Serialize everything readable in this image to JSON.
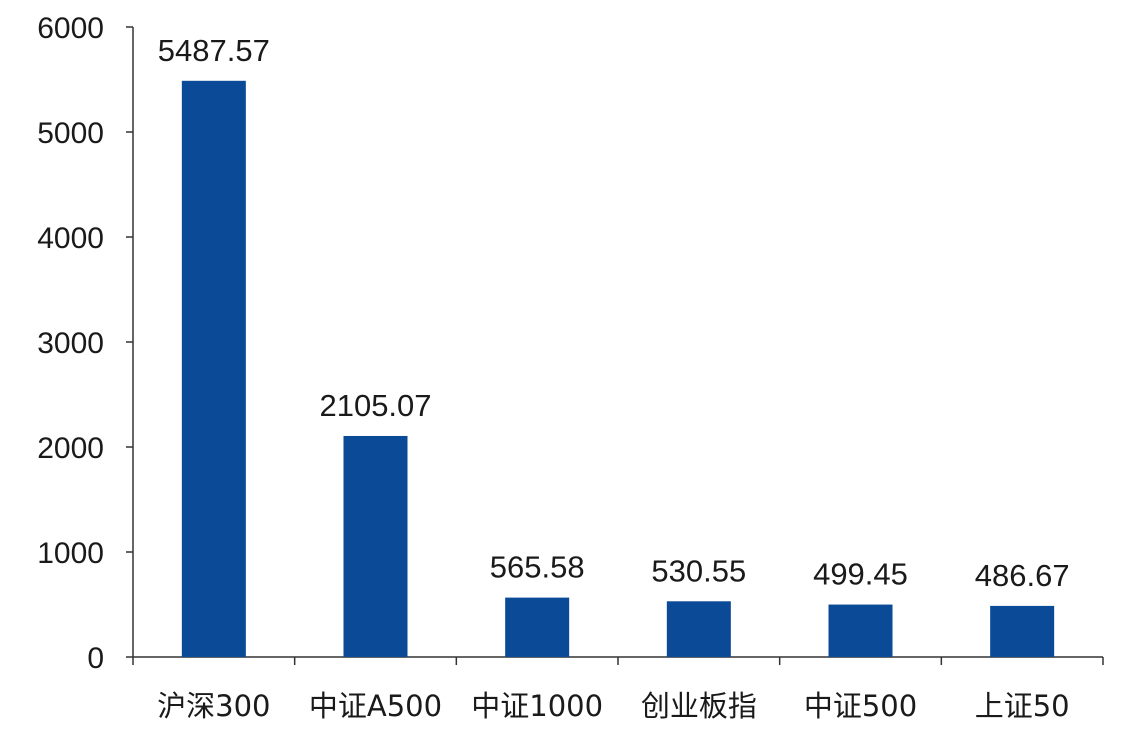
{
  "chart_data": {
    "type": "bar",
    "categories": [
      "沪深300",
      "中证A500",
      "中证1000",
      "创业板指",
      "中证500",
      "上证50"
    ],
    "values": [
      5487.57,
      2105.07,
      565.58,
      530.55,
      499.45,
      486.67
    ],
    "data_labels": [
      "5487.57",
      "2105.07",
      "565.58",
      "530.55",
      "499.45",
      "486.67"
    ],
    "y_ticks": [
      0,
      1000,
      2000,
      3000,
      4000,
      5000,
      6000
    ],
    "ylim": [
      0,
      6000
    ],
    "title": "",
    "xlabel": "",
    "ylabel": "",
    "grid": false,
    "bar_color": "#0b4a96"
  }
}
